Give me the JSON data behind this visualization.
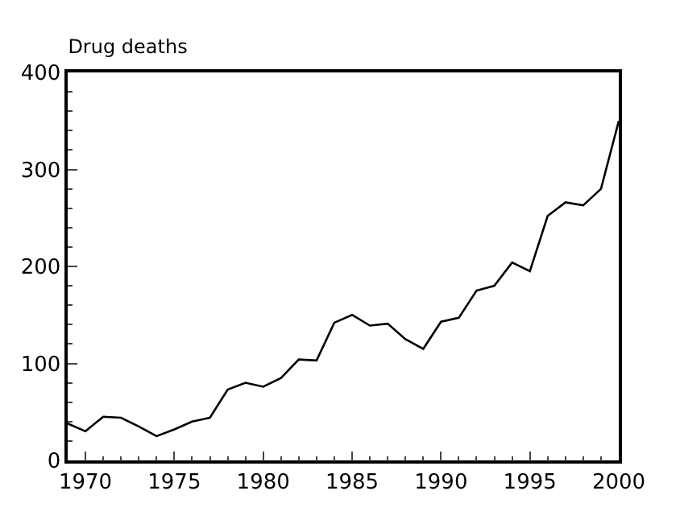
{
  "chart_data": {
    "type": "line",
    "title": "Drug deaths",
    "x": [
      1969,
      1970,
      1971,
      1972,
      1973,
      1974,
      1975,
      1976,
      1977,
      1978,
      1979,
      1980,
      1981,
      1982,
      1983,
      1984,
      1985,
      1986,
      1987,
      1988,
      1989,
      1990,
      1991,
      1992,
      1993,
      1994,
      1995,
      1996,
      1997,
      1998,
      1999,
      2000
    ],
    "series": [
      {
        "color": "#000000",
        "values": [
          38,
          30,
          45,
          44,
          35,
          25,
          32,
          40,
          44,
          73,
          80,
          76,
          85,
          104,
          103,
          142,
          150,
          139,
          141,
          125,
          115,
          143,
          147,
          175,
          180,
          204,
          195,
          252,
          266,
          263,
          280,
          350
        ]
      }
    ],
    "xlim": [
      1969,
      2000
    ],
    "xticks": [
      1970,
      1975,
      1980,
      1985,
      1990,
      1995,
      2000
    ],
    "ylim": [
      0,
      400
    ],
    "yticks": [
      0,
      100,
      200,
      300,
      400
    ],
    "legend": false
  }
}
